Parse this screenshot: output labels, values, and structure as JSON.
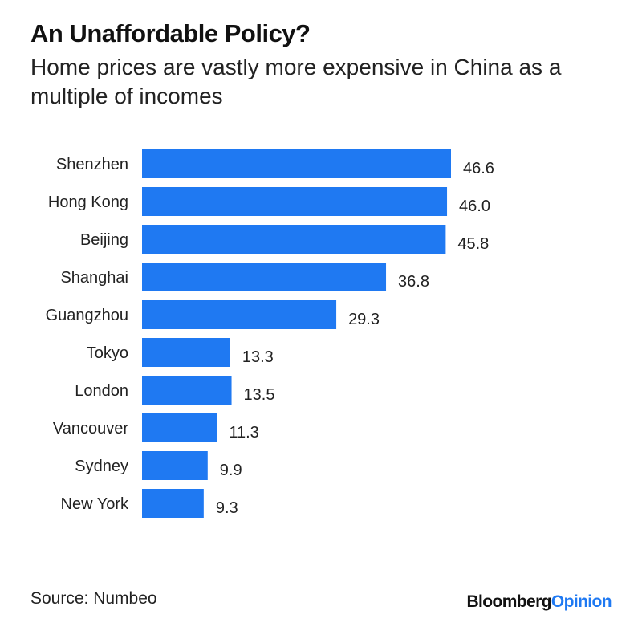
{
  "chart_data": {
    "type": "bar",
    "orientation": "horizontal",
    "title": "An Unaffordable Policy?",
    "subtitle": "Home prices are vastly more expensive in China as a multiple of incomes",
    "categories": [
      "Shenzhen",
      "Hong Kong",
      "Beijing",
      "Shanghai",
      "Guangzhou",
      "Tokyo",
      "London",
      "Vancouver",
      "Sydney",
      "New York"
    ],
    "values": [
      46.6,
      46.0,
      45.8,
      36.8,
      29.3,
      13.3,
      13.5,
      11.3,
      9.9,
      9.3
    ],
    "value_labels": [
      "46.6",
      "46.0",
      "45.8",
      "36.8",
      "29.3",
      "13.3",
      "13.5",
      "11.3",
      "9.9",
      "9.3"
    ],
    "xlim": [
      0,
      46.6
    ],
    "grid": false,
    "legend": "none",
    "bar_color": "#1f79f2"
  },
  "footer": {
    "source": "Source: Numbeo",
    "brand_primary": "Bloomberg",
    "brand_secondary": "Opinion"
  }
}
